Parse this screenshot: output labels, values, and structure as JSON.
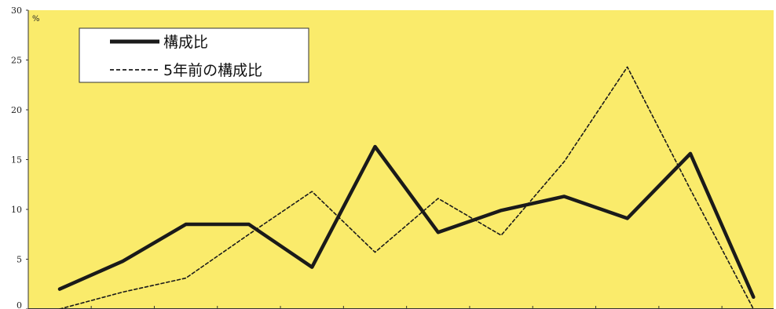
{
  "chart_data": {
    "type": "line",
    "title": "",
    "xlabel": "",
    "ylabel": "%",
    "ylim": [
      0,
      30
    ],
    "yticks": [
      "0",
      "5",
      "10",
      "15",
      "20",
      "25",
      "30"
    ],
    "x": [
      1,
      2,
      3,
      4,
      5,
      6,
      7,
      8,
      9,
      10,
      11,
      12
    ],
    "grid": false,
    "legend_position": "top-left",
    "background_color": "#FAEB6B",
    "series": [
      {
        "name": "構成比",
        "style": "solid",
        "color": "#1a1a1a",
        "values": [
          2.0,
          4.8,
          8.5,
          8.5,
          4.2,
          16.3,
          7.7,
          9.9,
          11.3,
          9.1,
          15.6,
          1.2
        ]
      },
      {
        "name": "5年前の構成比",
        "style": "dashed",
        "color": "#1a1a1a",
        "values": [
          0.0,
          1.7,
          3.1,
          7.5,
          11.8,
          5.7,
          11.1,
          7.4,
          14.8,
          24.3,
          12.0,
          0.0
        ]
      }
    ]
  }
}
